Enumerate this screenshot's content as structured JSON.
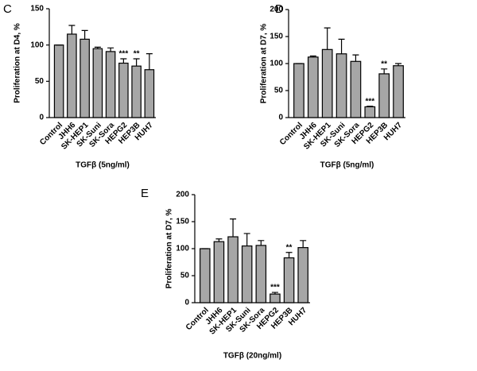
{
  "chart_data": [
    {
      "type": "bar",
      "panel": "C",
      "y_label": "Proliferation at D4, %",
      "x_label": "TGFβ  (5ng/ml)",
      "categories": [
        "Control",
        "JHH6",
        "SK-HEP1",
        "SK-Suni",
        "SK-Sora",
        "HEPG2",
        "HEP3B",
        "HUH7"
      ],
      "values": [
        100,
        115,
        108,
        95,
        91,
        75,
        71,
        66
      ],
      "errors": [
        0,
        12,
        12,
        2,
        5,
        6,
        10,
        22
      ],
      "color": "#a6a6a6",
      "ylim": [
        0,
        150
      ],
      "yticks": [
        0,
        50,
        100,
        150
      ],
      "annotations": [
        {
          "text": "***",
          "category": "HEPG2"
        },
        {
          "text": "**",
          "category": "HEP3B"
        }
      ]
    },
    {
      "type": "bar",
      "panel": "D",
      "y_label": "Proliferation at D7, %",
      "x_label": "TGFβ  (5ng/ml)",
      "categories": [
        "Control",
        "JHH6",
        "SK-HEP1",
        "SK-Suni",
        "SK-Sora",
        "HEPG2",
        "HEP3B",
        "HUH7"
      ],
      "values": [
        100,
        112,
        126,
        118,
        104,
        20,
        81,
        96
      ],
      "errors": [
        0,
        2,
        40,
        27,
        12,
        1,
        9,
        4
      ],
      "color": "#a6a6a6",
      "ylim": [
        0,
        200
      ],
      "yticks": [
        0,
        50,
        100,
        150,
        200
      ],
      "annotations": [
        {
          "text": "***",
          "category": "HEPG2"
        },
        {
          "text": "**",
          "category": "HEP3B"
        }
      ]
    },
    {
      "type": "bar",
      "panel": "E",
      "y_label": "Proliferation at D7, %",
      "x_label": "TGFβ  (20ng/ml)",
      "categories": [
        "Control",
        "JHH6",
        "SK-HEP1",
        "SK-Suni",
        "SK-Sora",
        "HEPG2",
        "HEP3B",
        "HUH7"
      ],
      "values": [
        100,
        113,
        122,
        105,
        106,
        16,
        83,
        102
      ],
      "errors": [
        0,
        5,
        33,
        23,
        9,
        3,
        10,
        13
      ],
      "color": "#a6a6a6",
      "ylim": [
        0,
        200
      ],
      "yticks": [
        0,
        50,
        100,
        150,
        200
      ],
      "annotations": [
        {
          "text": "***",
          "category": "HEPG2"
        },
        {
          "text": "**",
          "category": "HEP3B"
        }
      ]
    }
  ]
}
